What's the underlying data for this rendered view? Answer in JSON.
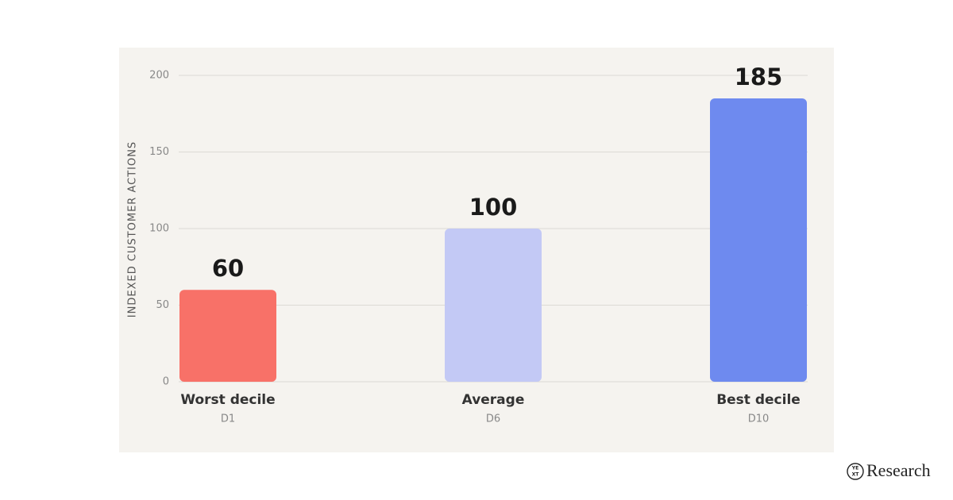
{
  "chart_data": {
    "type": "bar",
    "ylabel": "INDEXED CUSTOMER ACTIONS",
    "categories": [
      "Worst decile",
      "Average",
      "Best decile"
    ],
    "subcategories": [
      "D1",
      "D6",
      "D10"
    ],
    "values": [
      60,
      100,
      185
    ],
    "colors": [
      "#f87168",
      "#c3c9f5",
      "#6e8aef"
    ],
    "ylim": [
      0,
      200
    ],
    "yticks": [
      0,
      50,
      100,
      150,
      200
    ],
    "grid": true
  },
  "brand": {
    "logo_mark": [
      "YE",
      "XT"
    ],
    "name": "Research"
  }
}
